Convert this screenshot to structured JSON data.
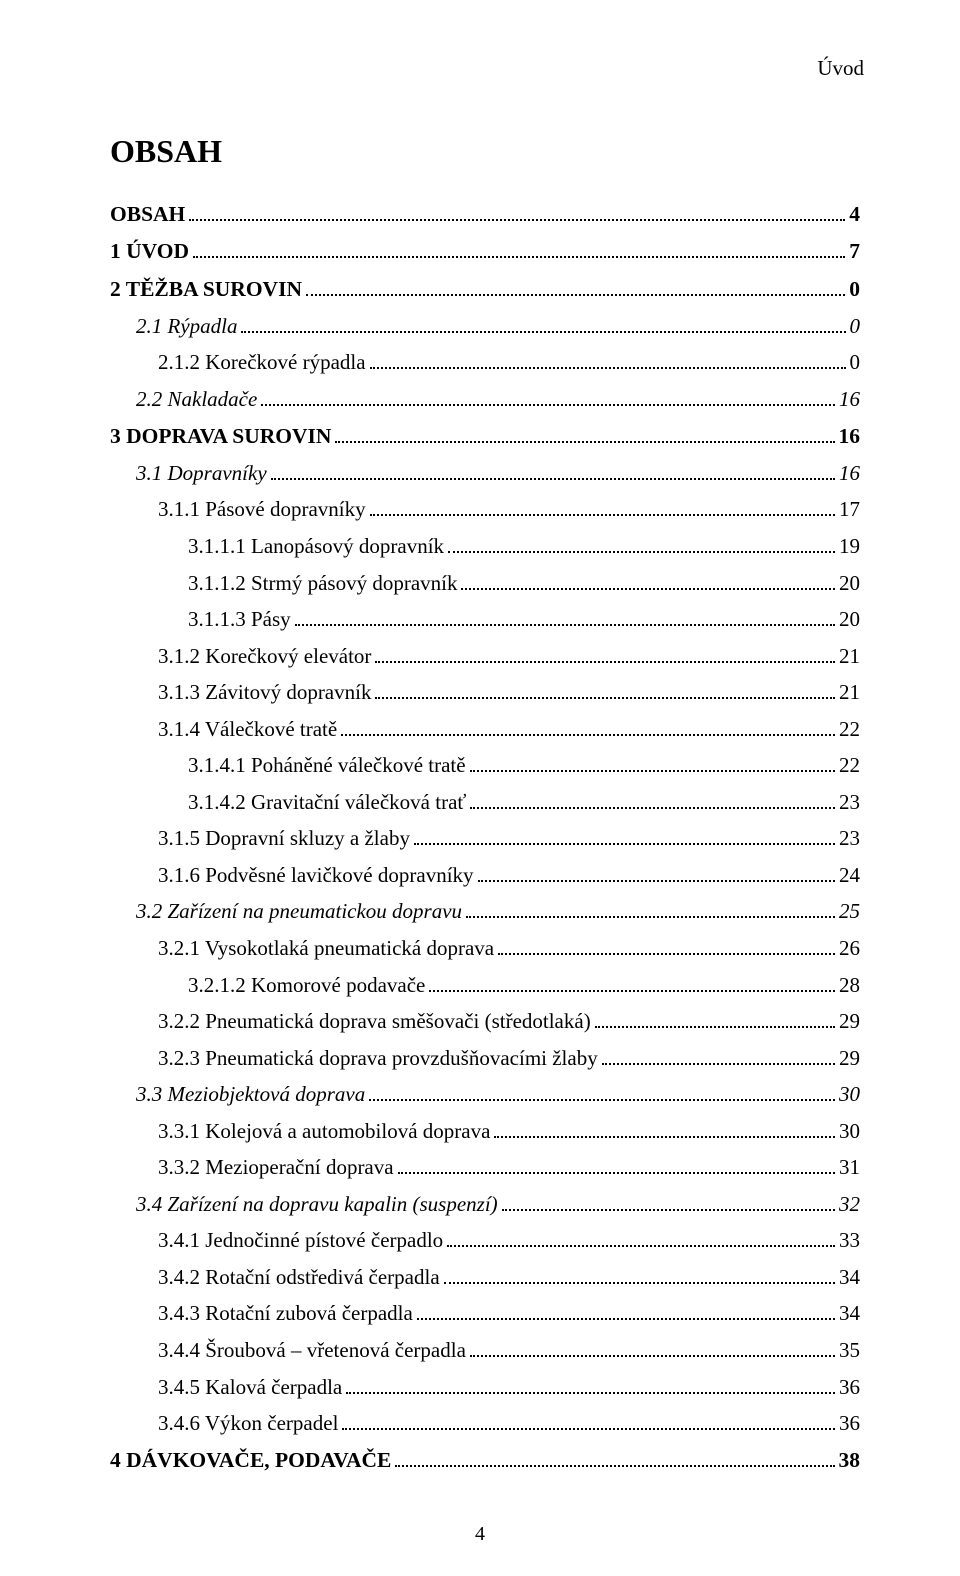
{
  "running_head": "Úvod",
  "title": "OBSAH",
  "page_number": "4",
  "entries": [
    {
      "level": 0,
      "label": "OBSAH",
      "page": "4"
    },
    {
      "level": 0,
      "label": "1  ÚVOD",
      "page": "7"
    },
    {
      "level": 0,
      "label": "2  TĚŽBA SUROVIN",
      "page": "0"
    },
    {
      "level": 1,
      "label": "2.1  Rýpadla",
      "page": "0"
    },
    {
      "level": 2,
      "label": "2.1.2  Korečkové rýpadla",
      "page": "0"
    },
    {
      "level": 1,
      "label": "2.2  Nakladače",
      "page": "16"
    },
    {
      "level": 0,
      "label": "3  DOPRAVA SUROVIN",
      "page": "16"
    },
    {
      "level": 1,
      "label": "3.1  Dopravníky",
      "page": "16"
    },
    {
      "level": 2,
      "label": "3.1.1  Pásové dopravníky",
      "page": "17"
    },
    {
      "level": 3,
      "label": "3.1.1.1  Lanopásový dopravník",
      "page": "19"
    },
    {
      "level": 3,
      "label": "3.1.1.2  Strmý pásový dopravník",
      "page": "20"
    },
    {
      "level": 3,
      "label": "3.1.1.3  Pásy",
      "page": "20"
    },
    {
      "level": 2,
      "label": "3.1.2  Korečkový elevátor",
      "page": "21"
    },
    {
      "level": 2,
      "label": "3.1.3  Závitový dopravník",
      "page": "21"
    },
    {
      "level": 2,
      "label": "3.1.4  Válečkové tratě",
      "page": "22"
    },
    {
      "level": 3,
      "label": "3.1.4.1  Poháněné válečkové tratě",
      "page": "22"
    },
    {
      "level": 3,
      "label": "3.1.4.2  Gravitační válečková trať",
      "page": "23"
    },
    {
      "level": 2,
      "label": "3.1.5  Dopravní skluzy a žlaby",
      "page": "23"
    },
    {
      "level": 2,
      "label": "3.1.6  Podvěsné lavičkové dopravníky",
      "page": "24"
    },
    {
      "level": 1,
      "label": "3.2  Zařízení na pneumatickou dopravu",
      "page": "25"
    },
    {
      "level": 2,
      "label": "3.2.1  Vysokotlaká pneumatická doprava",
      "page": "26"
    },
    {
      "level": 3,
      "label": "3.2.1.2  Komorové podavače",
      "page": "28"
    },
    {
      "level": 2,
      "label": "3.2.2  Pneumatická doprava směšovači (středotlaká)",
      "page": "29"
    },
    {
      "level": 2,
      "label": "3.2.3  Pneumatická doprava provzdušňovacími žlaby",
      "page": "29"
    },
    {
      "level": 1,
      "label": "3.3  Meziobjektová doprava",
      "page": "30"
    },
    {
      "level": 2,
      "label": "3.3.1  Kolejová a automobilová doprava",
      "page": "30"
    },
    {
      "level": 2,
      "label": "3.3.2  Mezioperační doprava",
      "page": "31"
    },
    {
      "level": 1,
      "label": "3.4  Zařízení na dopravu kapalin (suspenzí)",
      "page": "32"
    },
    {
      "level": 2,
      "label": "3.4.1  Jednočinné pístové čerpadlo",
      "page": "33"
    },
    {
      "level": 2,
      "label": "3.4.2  Rotační odstředivá čerpadla",
      "page": "34"
    },
    {
      "level": 2,
      "label": "3.4.3  Rotační zubová čerpadla",
      "page": "34"
    },
    {
      "level": 2,
      "label": "3.4.4  Šroubová – vřetenová čerpadla",
      "page": "35"
    },
    {
      "level": 2,
      "label": "3.4.5  Kalová čerpadla",
      "page": "36"
    },
    {
      "level": 2,
      "label": "3.4.6  Výkon čerpadel",
      "page": "36"
    },
    {
      "level": 0,
      "label": "4  DÁVKOVAČE, PODAVAČE",
      "page": "38"
    }
  ]
}
